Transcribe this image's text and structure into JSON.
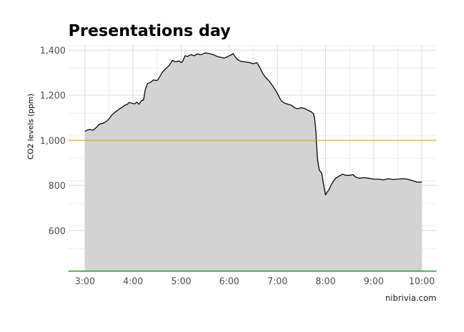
{
  "chart_data": {
    "type": "area",
    "title": "Presentations day",
    "xlabel": "",
    "ylabel": "CO2 levels (ppm)",
    "x_ticks": [
      "3:00",
      "4:00",
      "5:00",
      "6:00",
      "7:00",
      "8:00",
      "9:00",
      "10:00"
    ],
    "x_range": [
      2.8,
      10.3
    ],
    "ylim": [
      420,
      1420
    ],
    "y_ticks": [
      600,
      800,
      1000,
      1200,
      1400
    ],
    "grid": true,
    "threshold_line": {
      "value": 1000,
      "color": "#e8a000"
    },
    "baseline_color": "#2e8b2e",
    "fill_color": "#d3d3d3",
    "line_color": "#000000",
    "series": [
      {
        "points": [
          [
            3.0,
            1040
          ],
          [
            3.05,
            1046
          ],
          [
            3.1,
            1048
          ],
          [
            3.17,
            1045
          ],
          [
            3.25,
            1060
          ],
          [
            3.3,
            1072
          ],
          [
            3.38,
            1076
          ],
          [
            3.45,
            1085
          ],
          [
            3.5,
            1095
          ],
          [
            3.55,
            1110
          ],
          [
            3.6,
            1120
          ],
          [
            3.67,
            1132
          ],
          [
            3.72,
            1140
          ],
          [
            3.78,
            1148
          ],
          [
            3.83,
            1156
          ],
          [
            3.88,
            1160
          ],
          [
            3.92,
            1168
          ],
          [
            3.97,
            1165
          ],
          [
            4.03,
            1162
          ],
          [
            4.08,
            1170
          ],
          [
            4.12,
            1160
          ],
          [
            4.17,
            1175
          ],
          [
            4.22,
            1180
          ],
          [
            4.25,
            1222
          ],
          [
            4.3,
            1252
          ],
          [
            4.37,
            1258
          ],
          [
            4.42,
            1268
          ],
          [
            4.5,
            1265
          ],
          [
            4.55,
            1280
          ],
          [
            4.6,
            1300
          ],
          [
            4.68,
            1318
          ],
          [
            4.75,
            1332
          ],
          [
            4.82,
            1355
          ],
          [
            4.88,
            1348
          ],
          [
            4.95,
            1352
          ],
          [
            5.0,
            1345
          ],
          [
            5.03,
            1350
          ],
          [
            5.08,
            1375
          ],
          [
            5.13,
            1372
          ],
          [
            5.2,
            1380
          ],
          [
            5.27,
            1375
          ],
          [
            5.33,
            1383
          ],
          [
            5.42,
            1380
          ],
          [
            5.5,
            1388
          ],
          [
            5.58,
            1385
          ],
          [
            5.67,
            1380
          ],
          [
            5.75,
            1372
          ],
          [
            5.83,
            1368
          ],
          [
            5.9,
            1365
          ],
          [
            5.97,
            1372
          ],
          [
            6.03,
            1378
          ],
          [
            6.08,
            1385
          ],
          [
            6.13,
            1368
          ],
          [
            6.18,
            1357
          ],
          [
            6.25,
            1350
          ],
          [
            6.33,
            1348
          ],
          [
            6.42,
            1345
          ],
          [
            6.5,
            1340
          ],
          [
            6.57,
            1345
          ],
          [
            6.63,
            1325
          ],
          [
            6.7,
            1295
          ],
          [
            6.75,
            1280
          ],
          [
            6.82,
            1265
          ],
          [
            6.88,
            1248
          ],
          [
            6.93,
            1232
          ],
          [
            6.98,
            1215
          ],
          [
            7.03,
            1195
          ],
          [
            7.08,
            1175
          ],
          [
            7.15,
            1165
          ],
          [
            7.22,
            1160
          ],
          [
            7.3,
            1155
          ],
          [
            7.35,
            1145
          ],
          [
            7.42,
            1140
          ],
          [
            7.5,
            1145
          ],
          [
            7.58,
            1140
          ],
          [
            7.65,
            1132
          ],
          [
            7.7,
            1127
          ],
          [
            7.75,
            1118
          ],
          [
            7.77,
            1100
          ],
          [
            7.8,
            1040
          ],
          [
            7.83,
            920
          ],
          [
            7.87,
            868
          ],
          [
            7.92,
            855
          ],
          [
            7.97,
            790
          ],
          [
            8.0,
            758
          ],
          [
            8.03,
            770
          ],
          [
            8.07,
            780
          ],
          [
            8.1,
            795
          ],
          [
            8.15,
            815
          ],
          [
            8.2,
            830
          ],
          [
            8.27,
            840
          ],
          [
            8.35,
            850
          ],
          [
            8.42,
            845
          ],
          [
            8.5,
            845
          ],
          [
            8.57,
            848
          ],
          [
            8.62,
            838
          ],
          [
            8.7,
            832
          ],
          [
            8.8,
            835
          ],
          [
            8.9,
            832
          ],
          [
            9.0,
            828
          ],
          [
            9.1,
            828
          ],
          [
            9.2,
            825
          ],
          [
            9.3,
            830
          ],
          [
            9.4,
            826
          ],
          [
            9.5,
            828
          ],
          [
            9.6,
            830
          ],
          [
            9.7,
            828
          ],
          [
            9.8,
            822
          ],
          [
            9.9,
            815
          ],
          [
            10.0,
            815
          ]
        ]
      }
    ]
  },
  "source": "nibrivia.com"
}
